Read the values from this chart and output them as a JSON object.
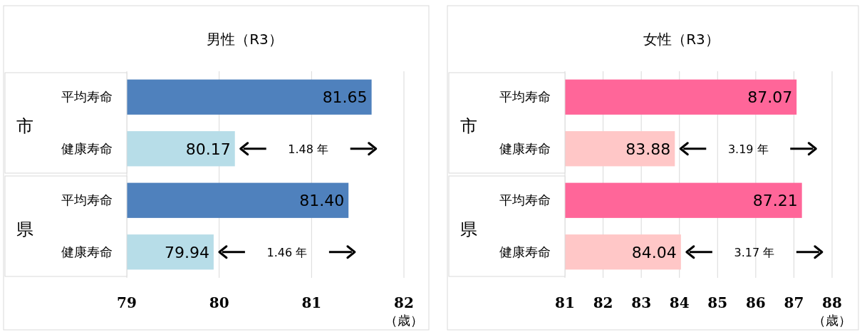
{
  "chart_data": [
    {
      "type": "bar",
      "orientation": "horizontal",
      "title": "男性（R3）",
      "categories": [
        "平均寿命",
        "健康寿命",
        "平均寿命",
        "健康寿命"
      ],
      "values": [
        81.65,
        80.17,
        81.4,
        79.94
      ],
      "colors": [
        "#4f81bd",
        "#b7dde8",
        "#4f81bd",
        "#b7dde8"
      ],
      "xlim": [
        79,
        82
      ],
      "xticks": [
        79,
        80,
        81,
        82
      ],
      "xlabel": "（歳）",
      "value_labels": [
        "81.65",
        "80.17",
        "81.40",
        "79.94"
      ],
      "grid": "x",
      "annotations": [
        "市",
        "1.48 年",
        "県",
        "1.46 年"
      ]
    },
    {
      "type": "bar",
      "orientation": "horizontal",
      "title": "女性（R3）",
      "categories": [
        "平均寿命",
        "健康寿命",
        "平均寿命",
        "健康寿命"
      ],
      "values": [
        87.07,
        83.88,
        87.21,
        84.04
      ],
      "colors": [
        "#ff6699",
        "#ffc7c7",
        "#ff6699",
        "#ffc7c7"
      ],
      "xlim": [
        81,
        88
      ],
      "xticks": [
        81,
        82,
        83,
        84,
        85,
        86,
        87,
        88
      ],
      "xlabel": "（歳）",
      "data_labels": true,
      "grid": "x",
      "annotations": [
        "市",
        "3.19 年",
        "県",
        "3.17 年"
      ]
    }
  ]
}
